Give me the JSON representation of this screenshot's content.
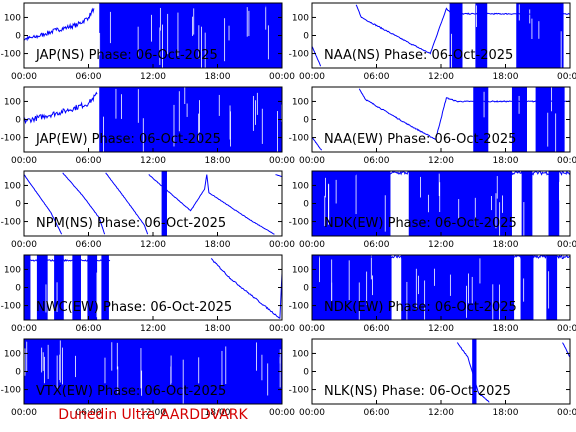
{
  "colors": {
    "trace": "#0000ff",
    "axis": "#000000",
    "footer": "#d40000",
    "background": "#ffffff"
  },
  "footer": "Dunedin Ultra AARDDVARK",
  "chart_data": [
    {
      "type": "line",
      "title": "JAP(NS) Phase: 06-Oct-2025",
      "ylim": [
        -180,
        180
      ],
      "yticks": [
        "100",
        "0",
        "-100"
      ],
      "xticks": [
        "00:00",
        "06:00",
        "12:00",
        "18:00",
        "00:00"
      ],
      "series": [
        {
          "values": [
            {
              "t": 0.0,
              "y": -20
            },
            {
              "t": 1.0,
              "y": -10
            },
            {
              "t": 2.0,
              "y": 10
            },
            {
              "t": 3.0,
              "y": 30
            },
            {
              "t": 4.0,
              "y": 45
            },
            {
              "t": 5.0,
              "y": 60
            },
            {
              "t": 6.0,
              "y": 100
            },
            {
              "t": 6.5,
              "y": 150
            },
            {
              "t": 7.0,
              "y": -170
            },
            {
              "t": 7.5,
              "y": 170
            },
            {
              "t": 24.0,
              "y": 170
            }
          ]
        }
      ],
      "bands": [
        [
          7.0,
          24.0
        ]
      ],
      "noise": 25
    },
    {
      "type": "line",
      "title": "NAA(NS) Phase: 06-Oct-2025",
      "ylim": [
        -180,
        180
      ],
      "yticks": [
        "100",
        "0",
        "-100"
      ],
      "xticks": [
        "00:00",
        "06:00",
        "12:00",
        "18:00",
        "00:00"
      ],
      "series": [
        {
          "values": [
            {
              "t": 0.0,
              "y": -60
            },
            {
              "t": 0.8,
              "y": -170
            },
            {
              "t": 0.9,
              "y": 150
            },
            {
              "t": 1.8,
              "y": -160
            },
            {
              "t": 1.9,
              "y": 170
            },
            {
              "t": 2.6,
              "y": -150
            },
            {
              "t": 2.7,
              "y": 170
            },
            {
              "t": 3.3,
              "y": -140
            },
            {
              "t": 3.4,
              "y": 170
            },
            {
              "t": 4.0,
              "y": -120
            },
            {
              "t": 4.1,
              "y": 170
            },
            {
              "t": 4.6,
              "y": 100
            },
            {
              "t": 9.0,
              "y": -40
            },
            {
              "t": 11.0,
              "y": -100
            },
            {
              "t": 12.5,
              "y": 150
            },
            {
              "t": 13.0,
              "y": 120
            },
            {
              "t": 24.0,
              "y": 120
            }
          ]
        }
      ],
      "bands": [
        [
          12.8,
          14.0
        ],
        [
          15.2,
          16.3
        ],
        [
          19.0,
          23.4
        ]
      ],
      "noise": 6
    },
    {
      "type": "line",
      "title": "JAP(EW) Phase: 06-Oct-2025",
      "ylim": [
        -180,
        180
      ],
      "yticks": [
        "100",
        "0",
        "-100"
      ],
      "xticks": [
        "00:00",
        "06:00",
        "12:00",
        "18:00",
        "00:00"
      ],
      "series": [
        {
          "values": [
            {
              "t": 0.0,
              "y": -10
            },
            {
              "t": 2.0,
              "y": 20
            },
            {
              "t": 4.0,
              "y": 50
            },
            {
              "t": 6.0,
              "y": 90
            },
            {
              "t": 6.8,
              "y": 140
            },
            {
              "t": 7.0,
              "y": -170
            },
            {
              "t": 24.0,
              "y": 170
            }
          ]
        }
      ],
      "bands": [
        [
          7.0,
          24.0
        ]
      ],
      "noise": 30
    },
    {
      "type": "line",
      "title": "NAA(EW) Phase: 06-Oct-2025",
      "ylim": [
        -180,
        180
      ],
      "yticks": [
        "100",
        "0",
        "-100"
      ],
      "xticks": [
        "00:00",
        "06:00",
        "12:00",
        "18:00",
        "00:00"
      ],
      "series": [
        {
          "values": [
            {
              "t": 0.0,
              "y": -100
            },
            {
              "t": 0.9,
              "y": -170
            },
            {
              "t": 1.0,
              "y": 160
            },
            {
              "t": 2.0,
              "y": -160
            },
            {
              "t": 2.1,
              "y": 170
            },
            {
              "t": 3.0,
              "y": -150
            },
            {
              "t": 3.1,
              "y": 170
            },
            {
              "t": 3.6,
              "y": -140
            },
            {
              "t": 3.7,
              "y": 170
            },
            {
              "t": 4.3,
              "y": -130
            },
            {
              "t": 4.4,
              "y": 170
            },
            {
              "t": 5.0,
              "y": 110
            },
            {
              "t": 9.0,
              "y": -30
            },
            {
              "t": 11.5,
              "y": -110
            },
            {
              "t": 12.5,
              "y": 120
            },
            {
              "t": 13.5,
              "y": 100
            },
            {
              "t": 24.0,
              "y": 100
            }
          ]
        }
      ],
      "bands": [
        [
          15.0,
          16.4
        ],
        [
          18.6,
          20.0
        ],
        [
          20.8,
          23.5
        ]
      ],
      "noise": 6
    },
    {
      "type": "line",
      "title": "NPM(NS) Phase: 06-Oct-2025",
      "ylim": [
        -180,
        180
      ],
      "yticks": [
        "100",
        "0",
        "-100"
      ],
      "xticks": [
        "00:00",
        "06:00",
        "12:00",
        "18:00",
        "00:00"
      ],
      "series": [
        {
          "values": [
            {
              "t": 0.0,
              "y": 160
            },
            {
              "t": 2.5,
              "y": -50
            },
            {
              "t": 3.5,
              "y": -170
            },
            {
              "t": 3.6,
              "y": 170
            },
            {
              "t": 5.5,
              "y": 40
            },
            {
              "t": 7.0,
              "y": -80
            },
            {
              "t": 7.5,
              "y": -170
            },
            {
              "t": 7.6,
              "y": 170
            },
            {
              "t": 9.5,
              "y": 20
            },
            {
              "t": 11.2,
              "y": -120
            },
            {
              "t": 11.5,
              "y": -170
            },
            {
              "t": 11.6,
              "y": 160
            },
            {
              "t": 15.5,
              "y": -40
            },
            {
              "t": 16.8,
              "y": 80
            },
            {
              "t": 17.0,
              "y": 160
            },
            {
              "t": 17.2,
              "y": 60
            },
            {
              "t": 21.0,
              "y": -90
            },
            {
              "t": 23.3,
              "y": -170
            },
            {
              "t": 23.4,
              "y": 160
            },
            {
              "t": 24.0,
              "y": 150
            }
          ]
        }
      ],
      "bands": [
        [
          12.8,
          13.3
        ]
      ],
      "noise": 3
    },
    {
      "type": "line",
      "title": "NDK(EW) Phase: 06-Oct-2025",
      "ylim": [
        -180,
        180
      ],
      "yticks": [
        "100",
        "0",
        "-100"
      ],
      "xticks": [
        "00:00",
        "06:00",
        "12:00",
        "18:00",
        "00:00"
      ],
      "series": [
        {
          "values": [
            {
              "t": 0.0,
              "y": 170
            },
            {
              "t": 24.0,
              "y": 170
            }
          ]
        }
      ],
      "bands": [
        [
          0.0,
          7.3
        ],
        [
          9.0,
          18.6
        ],
        [
          19.5,
          20.5
        ],
        [
          22.0,
          23.0
        ]
      ],
      "noise": 20
    },
    {
      "type": "line",
      "title": "NWC(EW) Phase: 06-Oct-2025",
      "ylim": [
        -180,
        180
      ],
      "yticks": [
        "100",
        "0",
        "-100"
      ],
      "xticks": [
        "00:00",
        "06:00",
        "12:00",
        "18:00",
        "00:00"
      ],
      "series": [
        {
          "values": [
            {
              "t": 0.0,
              "y": 150
            },
            {
              "t": 8.0,
              "y": 150
            },
            {
              "t": 9.8,
              "y": -160
            },
            {
              "t": 9.9,
              "y": 160
            },
            {
              "t": 11.7,
              "y": -150
            },
            {
              "t": 11.8,
              "y": 160
            },
            {
              "t": 13.6,
              "y": -150
            },
            {
              "t": 13.7,
              "y": 160
            },
            {
              "t": 15.4,
              "y": -140
            },
            {
              "t": 15.5,
              "y": 160
            },
            {
              "t": 17.3,
              "y": -130
            },
            {
              "t": 17.4,
              "y": 160
            },
            {
              "t": 19.2,
              "y": 50
            },
            {
              "t": 21.5,
              "y": -60
            },
            {
              "t": 23.8,
              "y": -170
            },
            {
              "t": 24.0,
              "y": 80
            }
          ]
        }
      ],
      "bands": [
        [
          0.0,
          0.6
        ],
        [
          1.2,
          2.2
        ],
        [
          2.8,
          3.7
        ],
        [
          4.5,
          5.3
        ],
        [
          5.9,
          6.8
        ],
        [
          7.2,
          7.9
        ]
      ],
      "noise": 8
    },
    {
      "type": "line",
      "title": "NDK(EW) Phase: 06-Oct-2025",
      "ylim": [
        -180,
        180
      ],
      "yticks": [
        "100",
        "0",
        "-100"
      ],
      "xticks": [
        "00:00",
        "06:00",
        "12:00",
        "18:00",
        "00:00"
      ],
      "series": [
        {
          "values": [
            {
              "t": 0.0,
              "y": 170
            },
            {
              "t": 24.0,
              "y": 170
            }
          ]
        }
      ],
      "bands": [
        [
          0.0,
          7.4
        ],
        [
          8.3,
          18.8
        ],
        [
          19.4,
          20.6
        ],
        [
          21.8,
          22.8
        ]
      ],
      "noise": 20
    },
    {
      "type": "line",
      "title": "VTX(EW) Phase: 06-Oct-2025",
      "ylim": [
        -180,
        180
      ],
      "yticks": [
        "100",
        "0",
        "-100"
      ],
      "xticks": [
        "00:00",
        "06:00",
        "12:00",
        "18:00",
        "00:00"
      ],
      "series": [
        {
          "values": [
            {
              "t": 0.0,
              "y": 170
            },
            {
              "t": 24.0,
              "y": 170
            }
          ]
        }
      ],
      "bands": [
        [
          0.0,
          24.0
        ]
      ],
      "noise": 20
    },
    {
      "type": "line",
      "title": "NLK(NS) Phase: 06-Oct-2025",
      "ylim": [
        -180,
        180
      ],
      "yticks": [
        "100",
        "0",
        "-100"
      ],
      "xticks": [
        "00:00",
        "06:00",
        "12:00",
        "18:00",
        "00:00"
      ],
      "series": [
        {
          "values": [
            {
              "t": 0.0,
              "y": 150
            },
            {
              "t": 0.7,
              "y": -170
            },
            {
              "t": 0.8,
              "y": 160
            },
            {
              "t": 1.6,
              "y": -170
            },
            {
              "t": 1.7,
              "y": 160
            },
            {
              "t": 2.6,
              "y": -170
            },
            {
              "t": 2.7,
              "y": 160
            },
            {
              "t": 3.6,
              "y": -170
            },
            {
              "t": 3.7,
              "y": 160
            },
            {
              "t": 4.6,
              "y": -170
            },
            {
              "t": 4.7,
              "y": 160
            },
            {
              "t": 5.7,
              "y": -170
            },
            {
              "t": 5.8,
              "y": 160
            },
            {
              "t": 6.8,
              "y": -170
            },
            {
              "t": 6.9,
              "y": 160
            },
            {
              "t": 7.9,
              "y": -170
            },
            {
              "t": 8.0,
              "y": 160
            },
            {
              "t": 9.0,
              "y": -170
            },
            {
              "t": 9.1,
              "y": 160
            },
            {
              "t": 10.1,
              "y": -170
            },
            {
              "t": 10.2,
              "y": 160
            },
            {
              "t": 11.2,
              "y": -170
            },
            {
              "t": 11.3,
              "y": 160
            },
            {
              "t": 12.3,
              "y": -170
            },
            {
              "t": 12.4,
              "y": 160
            },
            {
              "t": 13.4,
              "y": -170
            },
            {
              "t": 13.5,
              "y": 160
            },
            {
              "t": 14.5,
              "y": 80
            },
            {
              "t": 15.5,
              "y": -120
            },
            {
              "t": 16.5,
              "y": -170
            },
            {
              "t": 16.6,
              "y": 160
            },
            {
              "t": 18.3,
              "y": -170
            },
            {
              "t": 18.4,
              "y": 160
            },
            {
              "t": 20.0,
              "y": -170
            },
            {
              "t": 20.1,
              "y": 160
            },
            {
              "t": 21.6,
              "y": -170
            },
            {
              "t": 21.7,
              "y": 160
            },
            {
              "t": 23.2,
              "y": -170
            },
            {
              "t": 23.3,
              "y": 160
            },
            {
              "t": 24.0,
              "y": 80
            }
          ]
        }
      ],
      "bands": [
        [
          14.9,
          15.3
        ]
      ],
      "noise": 5
    }
  ]
}
